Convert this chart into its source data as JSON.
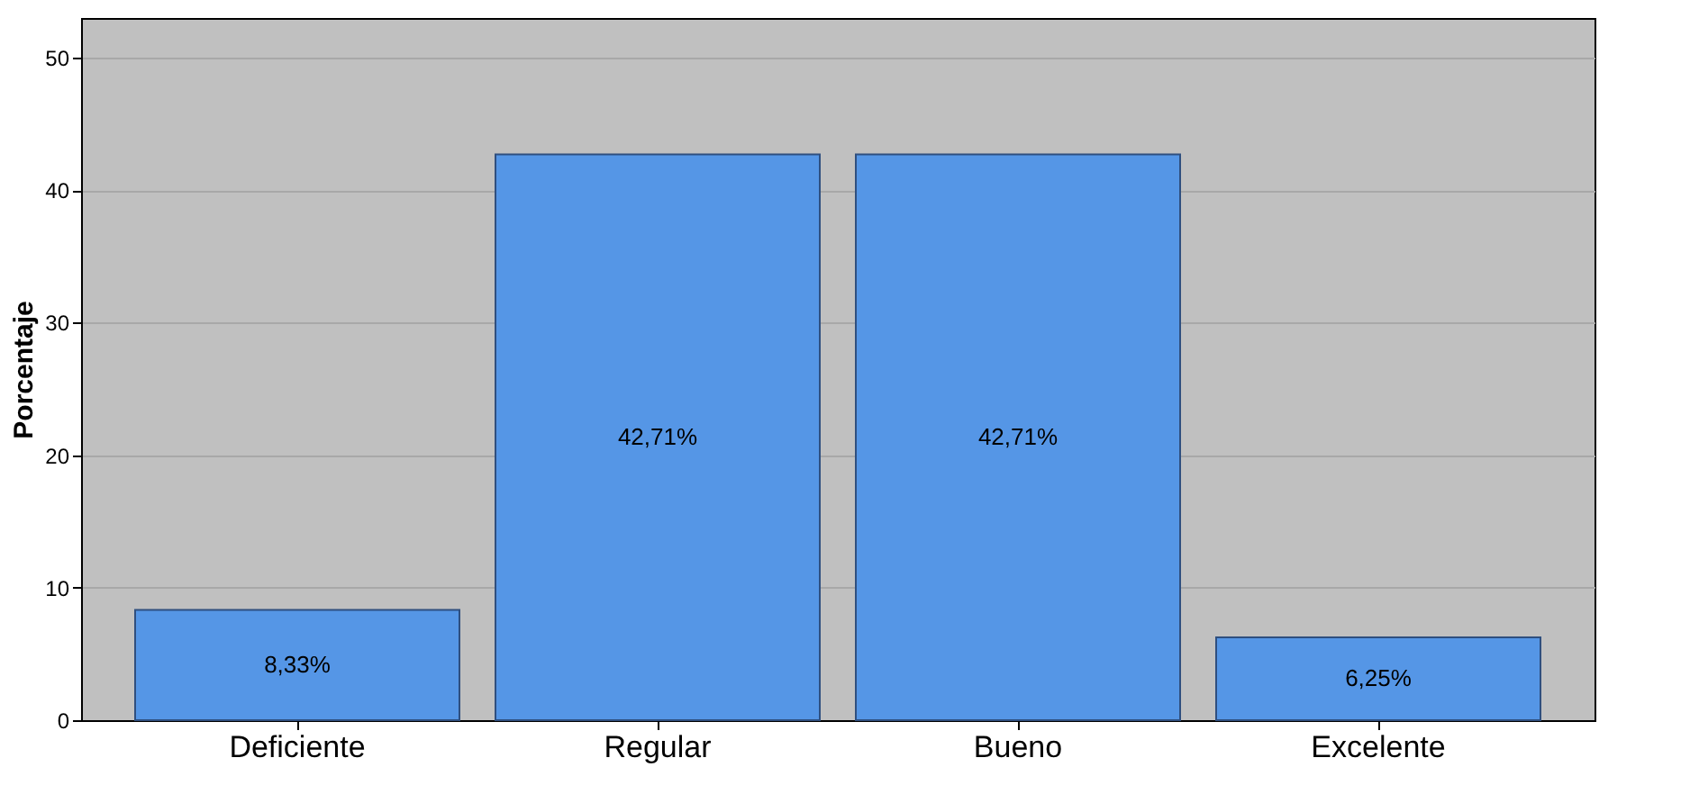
{
  "chart_data": {
    "type": "bar",
    "ylabel": "Porcentaje",
    "categories": [
      "Deficiente",
      "Regular",
      "Bueno",
      "Excelente"
    ],
    "values": [
      8.33,
      42.71,
      42.71,
      6.25
    ],
    "value_labels": [
      "8,33%",
      "42,71%",
      "42,71%",
      "6,25%"
    ],
    "color": "#5596e6",
    "ylim": [
      0,
      53
    ],
    "yticks": [
      0,
      10,
      20,
      30,
      40,
      50
    ],
    "grid": "y"
  }
}
